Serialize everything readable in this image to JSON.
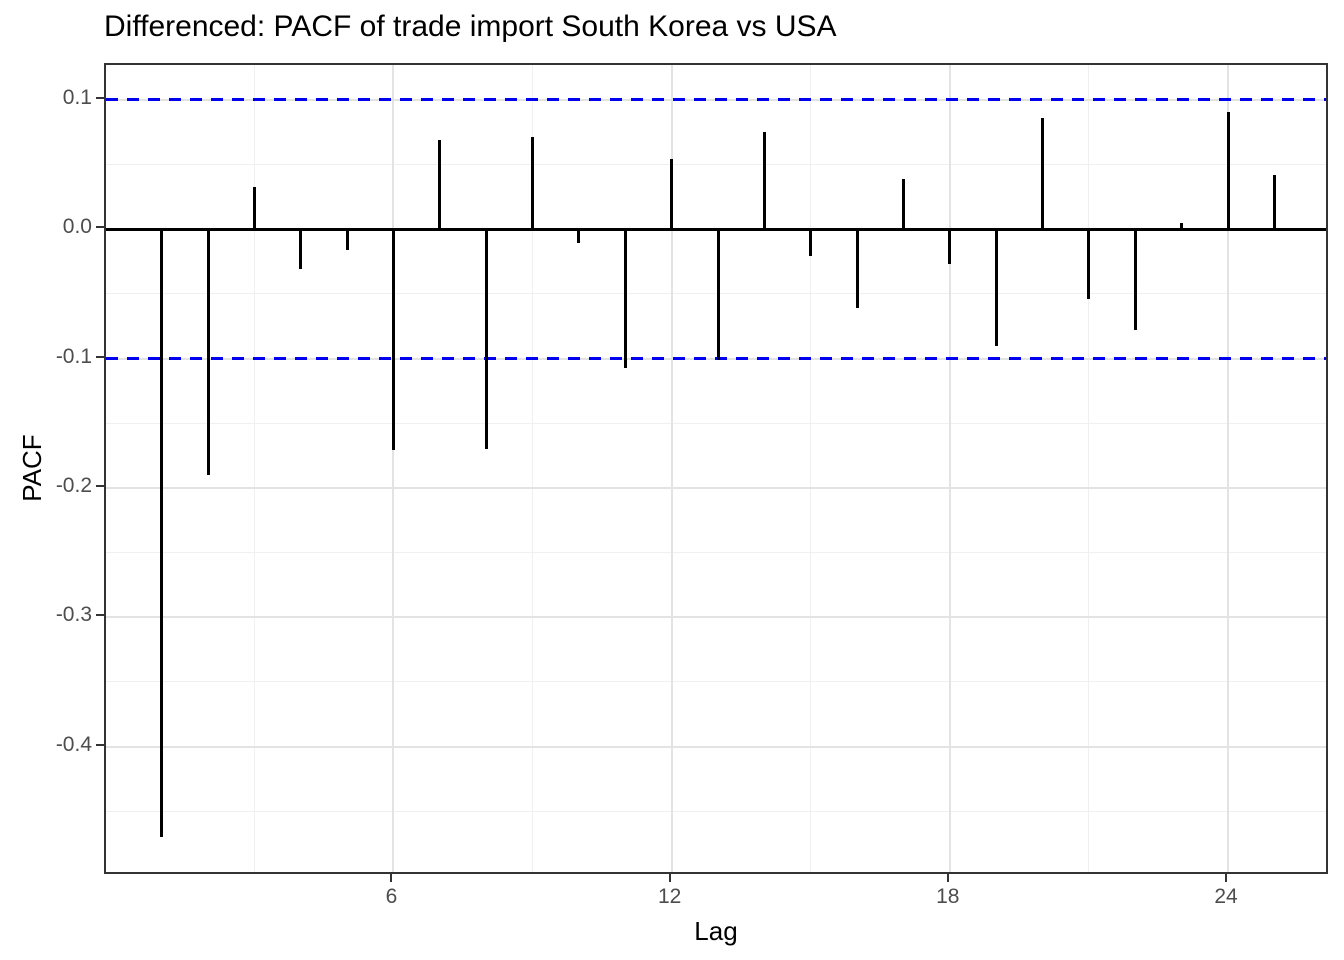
{
  "chart_data": {
    "type": "bar",
    "subtype": "stem-pacf",
    "title": "Differenced: PACF of trade import South Korea vs USA",
    "xlabel": "Lag",
    "ylabel": "PACF",
    "x": [
      1,
      2,
      3,
      4,
      5,
      6,
      7,
      8,
      9,
      10,
      11,
      12,
      13,
      14,
      15,
      16,
      17,
      18,
      19,
      20,
      21,
      22,
      23,
      24,
      25
    ],
    "values": [
      -0.47,
      -0.19,
      0.033,
      -0.031,
      -0.016,
      -0.171,
      0.069,
      -0.17,
      0.071,
      -0.011,
      -0.107,
      0.054,
      -0.101,
      0.075,
      -0.021,
      -0.061,
      0.039,
      -0.027,
      -0.09,
      0.086,
      -0.054,
      -0.078,
      0.005,
      0.091,
      0.042
    ],
    "confidence_bands": {
      "upper": 0.1,
      "lower": -0.1,
      "style": "dashed",
      "color": "#0000ee"
    },
    "zero_line": 0,
    "x_ticks": {
      "values": [
        6,
        12,
        18,
        24
      ],
      "labels": [
        "6",
        "12",
        "18",
        "24"
      ]
    },
    "y_ticks": {
      "values": [
        0.1,
        0.0,
        -0.1,
        -0.2,
        -0.3,
        -0.4
      ],
      "labels": [
        "0.1",
        "0.0",
        "-0.1",
        "-0.2",
        "-0.3",
        "-0.4"
      ]
    },
    "x_minor": [
      3,
      9,
      15,
      21
    ],
    "y_minor": [
      0.05,
      -0.05,
      -0.15,
      -0.25,
      -0.35,
      -0.45
    ],
    "xlim": [
      -0.2,
      26.2
    ],
    "ylim": [
      -0.5,
      0.127
    ],
    "grid": "on",
    "legend": "none"
  },
  "colors": {
    "spike": "#000000",
    "zero_line": "#000000",
    "confidence": "#0000ee",
    "grid_major": "#e3e3e3",
    "grid_minor": "#f0f0f0",
    "panel_border": "#333333",
    "tick_text": "#4d4d4d",
    "title_text": "#000000",
    "background": "#ffffff"
  }
}
